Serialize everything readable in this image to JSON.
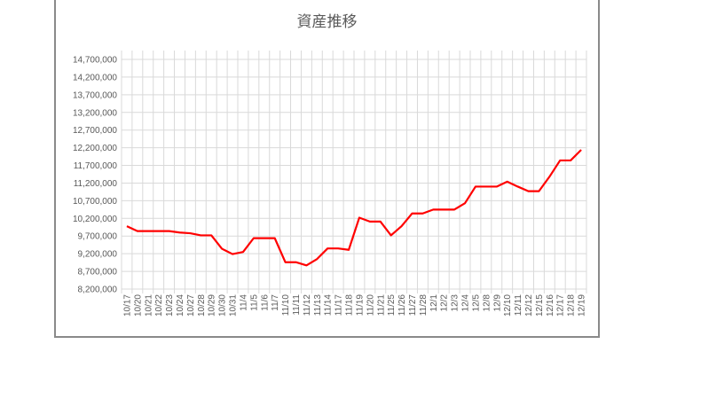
{
  "chart_data": {
    "type": "line",
    "title": "資産推移",
    "xlabel": "",
    "ylabel": "",
    "ylim": [
      8200000,
      14700000
    ],
    "yticks": [
      8200000,
      8700000,
      9200000,
      9700000,
      10200000,
      10700000,
      11200000,
      11700000,
      12200000,
      12700000,
      13200000,
      13700000,
      14200000,
      14700000
    ],
    "grid": true,
    "legend": "none",
    "color": "#ff0000",
    "categories": [
      "10/17",
      "10/20",
      "10/21",
      "10/22",
      "10/23",
      "10/24",
      "10/27",
      "10/28",
      "10/29",
      "10/30",
      "10/31",
      "11/4",
      "11/5",
      "11/6",
      "11/7",
      "11/10",
      "11/11",
      "11/12",
      "11/13",
      "11/14",
      "11/17",
      "11/18",
      "11/19",
      "11/20",
      "11/21",
      "11/25",
      "11/26",
      "11/27",
      "11/28",
      "12/1",
      "12/2",
      "12/3",
      "12/4",
      "12/5",
      "12/8",
      "12/9",
      "12/10",
      "12/11",
      "12/12",
      "12/15",
      "12/16",
      "12/17",
      "12/18",
      "12/19"
    ],
    "values": [
      9980000,
      9840000,
      9840000,
      9840000,
      9840000,
      9800000,
      9780000,
      9720000,
      9720000,
      9340000,
      9190000,
      9250000,
      9640000,
      9640000,
      9640000,
      8960000,
      8960000,
      8870000,
      9050000,
      9350000,
      9350000,
      9310000,
      10220000,
      10110000,
      10110000,
      9720000,
      9980000,
      10340000,
      10340000,
      10450000,
      10450000,
      10450000,
      10630000,
      11100000,
      11100000,
      11100000,
      11240000,
      11100000,
      10970000,
      10970000,
      11380000,
      11840000,
      11840000,
      12140000
    ]
  }
}
